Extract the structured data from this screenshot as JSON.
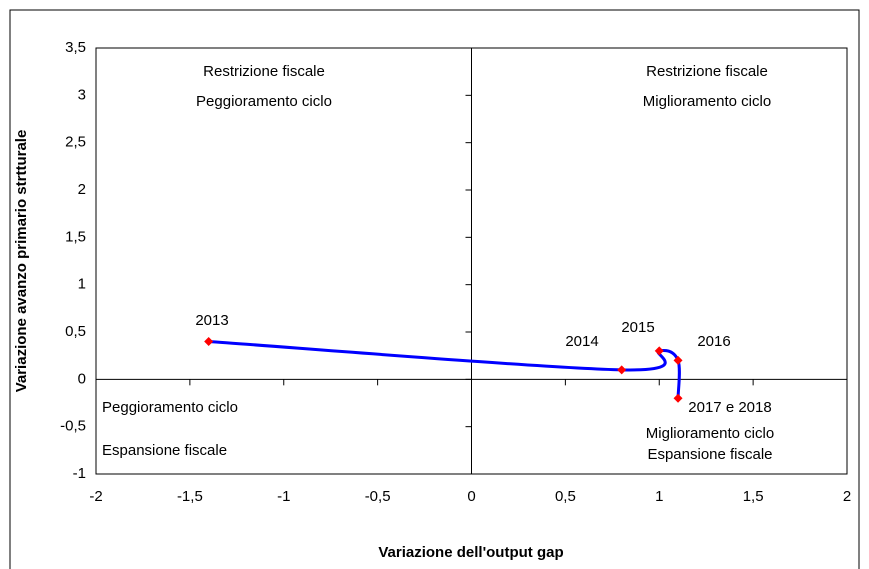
{
  "chart_data": {
    "type": "scatter",
    "xlabel": "Variazione dell'output gap",
    "ylabel": "Variazione avanzo primario strtturale",
    "xlim": [
      -2,
      2
    ],
    "ylim": [
      -1,
      3.5
    ],
    "xticks": [
      -2,
      {
        "value": -1.5,
        "label": "-1,5"
      },
      -1,
      {
        "value": -0.5,
        "label": "-0,5"
      },
      0,
      {
        "value": 0.5,
        "label": "0,5"
      },
      1,
      {
        "value": 1.5,
        "label": "1,5"
      },
      2
    ],
    "yticks": [
      -1,
      {
        "value": -0.5,
        "label": "-0,5"
      },
      0,
      {
        "value": 0.5,
        "label": "0,5"
      },
      1,
      {
        "value": 1.5,
        "label": "1,5"
      },
      2,
      {
        "value": 2.5,
        "label": "2,5"
      },
      3,
      {
        "value": 3.5,
        "label": "3,5"
      }
    ],
    "series": [
      {
        "line_color": "#0000ff",
        "color": "#ff0000",
        "x": [
          -1.4,
          0.8,
          1.0,
          1.1,
          1.1
        ],
        "values": [
          0.4,
          0.1,
          0.3,
          0.2,
          -0.2
        ],
        "labels": [
          "2013",
          "2014",
          "2015",
          "2016",
          "2017 e 2018"
        ]
      }
    ],
    "annotations": [
      "Restrizione fiscale",
      "Peggioramento ciclo",
      "Restrizione fiscale",
      "Miglioramento ciclo",
      "Peggioramento ciclo",
      "Espansione fiscale",
      "Miglioramento ciclo",
      "Espansione fiscale"
    ]
  }
}
